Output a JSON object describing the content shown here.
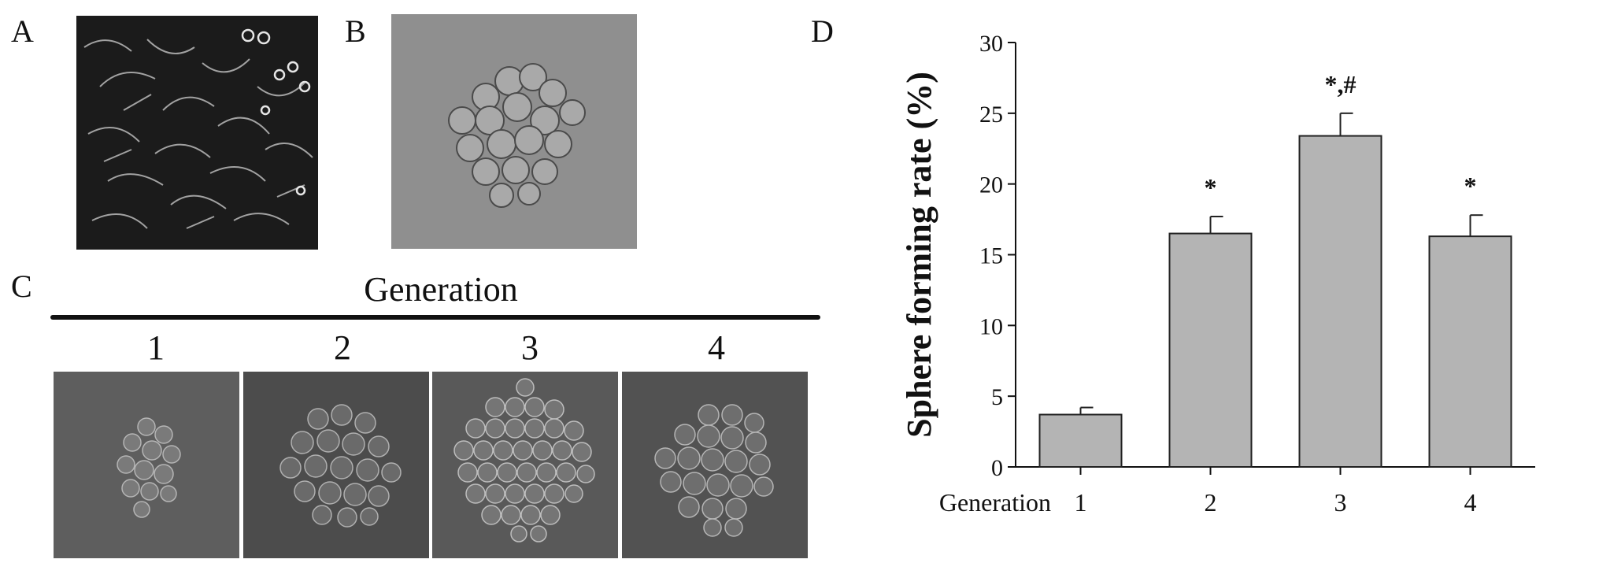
{
  "panels": {
    "a": {
      "label": "A"
    },
    "b": {
      "label": "B"
    },
    "c": {
      "label": "C",
      "title": "Generation",
      "columns": [
        "1",
        "2",
        "3",
        "4"
      ]
    },
    "d": {
      "label": "D"
    }
  },
  "colors": {
    "bar_fill": "#b4b4b4",
    "bar_stroke": "#222222",
    "axis": "#111111"
  },
  "chart_data": {
    "type": "bar",
    "categories": [
      "1",
      "2",
      "3",
      "4"
    ],
    "category_axis_label": "Generation",
    "series": [
      {
        "values": [
          3.7,
          16.5,
          23.4,
          16.3
        ],
        "errors": [
          0.5,
          1.2,
          1.6,
          1.5
        ]
      }
    ],
    "annotations": [
      "",
      "*",
      "*,#",
      "*"
    ],
    "title": "",
    "xlabel": "",
    "ylabel": "Sphere forming rate (%)",
    "ylim": [
      0,
      30
    ],
    "yticks": [
      0,
      5,
      10,
      15,
      20,
      25,
      30
    ],
    "grid": false,
    "legend": "none"
  }
}
